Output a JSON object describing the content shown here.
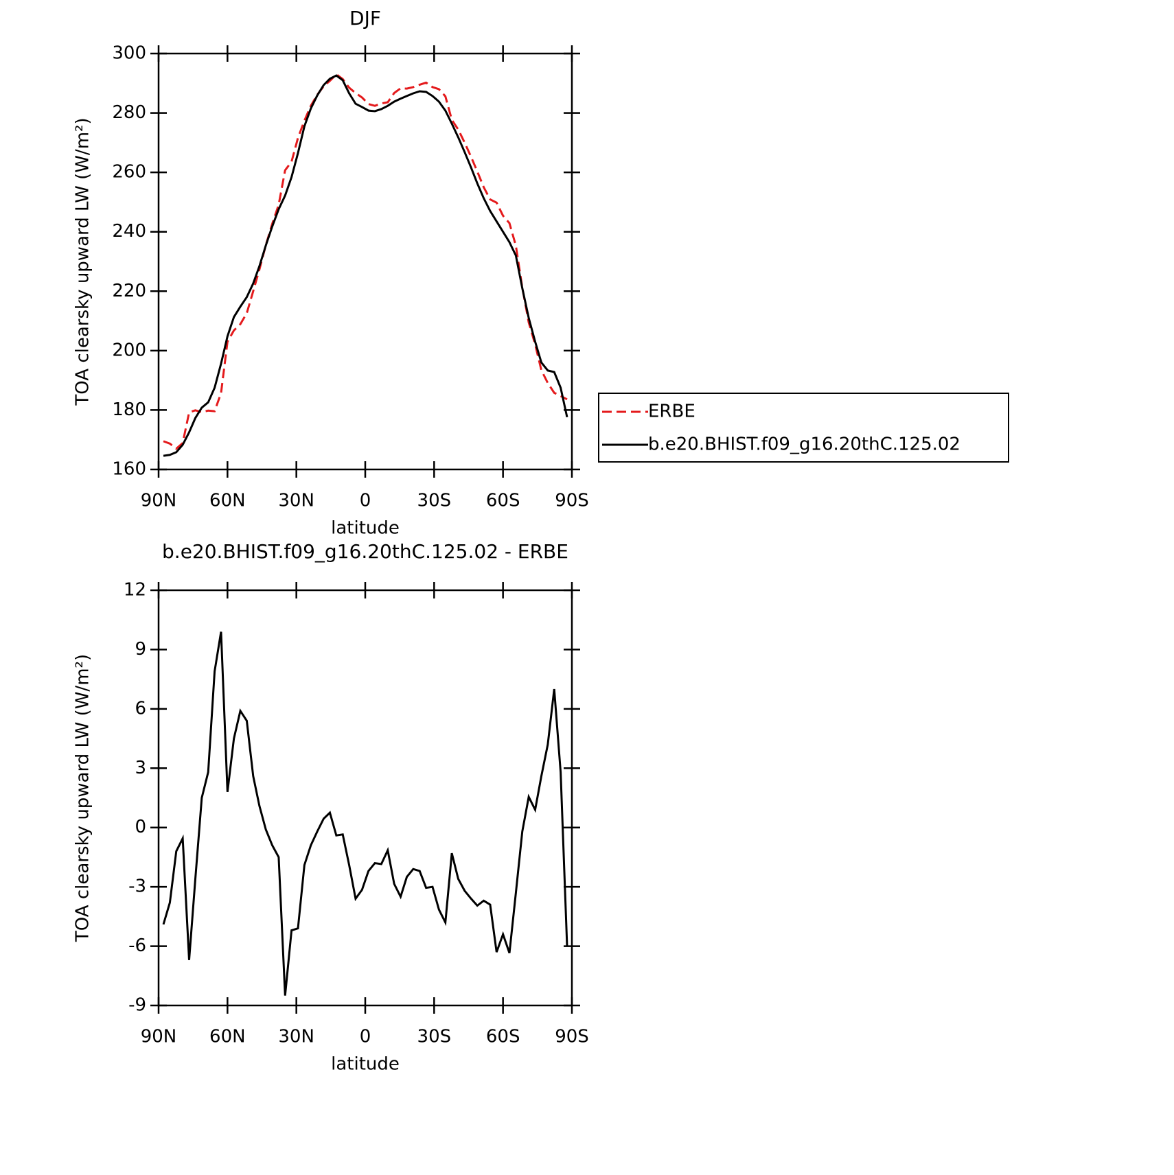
{
  "chart_data": [
    {
      "type": "line",
      "title": "DJF",
      "xlabel": "latitude",
      "ylabel": "TOA clearsky upward LW (W/m²)",
      "xlim": [
        90,
        -90
      ],
      "xticks": [
        {
          "value": 90,
          "label": "90N"
        },
        {
          "value": 60,
          "label": "60N"
        },
        {
          "value": 30,
          "label": "30N"
        },
        0,
        {
          "value": -30,
          "label": "30S"
        },
        {
          "value": -60,
          "label": "60S"
        },
        {
          "value": -90,
          "label": "90S"
        }
      ],
      "ylim": [
        160,
        300
      ],
      "yticks": [
        160,
        180,
        200,
        220,
        240,
        260,
        280,
        300
      ],
      "legend": "right",
      "x": [
        87.9,
        85.1,
        82.3,
        79.5,
        76.7,
        74.0,
        71.2,
        68.4,
        65.6,
        62.8,
        60.0,
        57.2,
        54.4,
        51.6,
        48.8,
        46.1,
        43.3,
        40.5,
        37.7,
        34.9,
        32.1,
        29.3,
        26.5,
        23.7,
        20.9,
        18.1,
        15.4,
        12.6,
        9.8,
        7.0,
        4.2,
        1.4,
        -1.4,
        -4.2,
        -7.0,
        -9.8,
        -12.6,
        -15.4,
        -18.1,
        -20.9,
        -23.7,
        -26.5,
        -29.3,
        -32.1,
        -34.9,
        -37.7,
        -40.5,
        -43.3,
        -46.1,
        -48.8,
        -51.6,
        -54.4,
        -57.2,
        -60.0,
        -62.8,
        -65.6,
        -68.4,
        -71.2,
        -74.0,
        -76.7,
        -79.5,
        -82.3,
        -85.1,
        -87.9
      ],
      "series": [
        {
          "name": "ERBE",
          "color": "#e41a1c",
          "linestyle": "dashed",
          "values": [
            169.5,
            168.7,
            167.0,
            168.9,
            179.2,
            179.9,
            179.3,
            179.8,
            179.6,
            185.7,
            203.0,
            206.8,
            208.9,
            212.6,
            220.0,
            227.3,
            235.5,
            242.7,
            249.1,
            260.7,
            263.6,
            271.6,
            277.4,
            282.4,
            286.1,
            289.0,
            290.8,
            293.0,
            291.4,
            288.5,
            286.7,
            285.2,
            283.0,
            282.4,
            283.2,
            283.6,
            286.7,
            288.3,
            288.2,
            288.7,
            289.5,
            290.2,
            288.7,
            288.0,
            285.6,
            277.7,
            274.4,
            270.0,
            265.2,
            260.3,
            255.0,
            250.9,
            249.8,
            245.4,
            242.9,
            235.3,
            221.2,
            209.5,
            202.1,
            193.4,
            189.1,
            185.8,
            184.7,
            183.6
          ]
        },
        {
          "name": "b.e20.BHIST.f09_g16.20thC.125.02",
          "color": "#000000",
          "linestyle": "solid",
          "values": [
            164.6,
            164.9,
            165.8,
            168.3,
            172.5,
            177.3,
            180.8,
            182.6,
            187.5,
            195.6,
            204.8,
            211.3,
            214.8,
            218.0,
            222.6,
            228.4,
            235.4,
            241.8,
            247.6,
            252.2,
            258.4,
            266.5,
            275.5,
            281.5,
            285.9,
            289.4,
            291.5,
            292.6,
            291.0,
            286.6,
            283.1,
            282.0,
            280.8,
            280.6,
            281.3,
            282.4,
            283.8,
            284.8,
            285.7,
            286.6,
            287.3,
            287.1,
            285.7,
            283.8,
            280.8,
            276.4,
            271.8,
            266.8,
            261.6,
            256.3,
            251.3,
            247.0,
            243.5,
            240.0,
            236.5,
            232.0,
            221.0,
            211.0,
            203.0,
            196.0,
            193.3,
            192.8,
            187.5,
            177.6
          ]
        }
      ]
    },
    {
      "type": "line",
      "title": "b.e20.BHIST.f09_g16.20thC.125.02 - ERBE",
      "xlabel": "latitude",
      "ylabel": "TOA clearsky upward LW (W/m²)",
      "xlim": [
        90,
        -90
      ],
      "xticks": [
        {
          "value": 90,
          "label": "90N"
        },
        {
          "value": 60,
          "label": "60N"
        },
        {
          "value": 30,
          "label": "30N"
        },
        0,
        {
          "value": -30,
          "label": "30S"
        },
        {
          "value": -60,
          "label": "60S"
        },
        {
          "value": -90,
          "label": "90S"
        }
      ],
      "ylim": [
        -9,
        12
      ],
      "yticks": [
        -9,
        -6,
        -3,
        0,
        3,
        6,
        9,
        12
      ],
      "x": [
        87.9,
        85.1,
        82.3,
        79.5,
        76.7,
        74.0,
        71.2,
        68.4,
        65.6,
        62.8,
        60.0,
        57.2,
        54.4,
        51.6,
        48.8,
        46.1,
        43.3,
        40.5,
        37.7,
        34.9,
        32.1,
        29.3,
        26.5,
        23.7,
        20.9,
        18.1,
        15.4,
        12.6,
        9.8,
        7.0,
        4.2,
        1.4,
        -1.4,
        -4.2,
        -7.0,
        -9.8,
        -12.6,
        -15.4,
        -18.1,
        -20.9,
        -23.7,
        -26.5,
        -29.3,
        -32.1,
        -34.9,
        -37.7,
        -40.5,
        -43.3,
        -46.1,
        -48.8,
        -51.6,
        -54.4,
        -57.2,
        -60.0,
        -62.8,
        -65.6,
        -68.4,
        -71.2,
        -74.0,
        -76.7,
        -79.5,
        -82.3,
        -85.1,
        -87.9
      ],
      "color": "#000000",
      "values": [
        -4.9,
        -3.8,
        -1.2,
        -0.55,
        -6.7,
        -2.6,
        1.5,
        2.8,
        7.9,
        9.9,
        1.8,
        4.5,
        5.9,
        5.4,
        2.6,
        1.1,
        -0.1,
        -0.9,
        -1.5,
        -8.5,
        -5.2,
        -5.1,
        -1.9,
        -0.9,
        -0.2,
        0.45,
        0.75,
        -0.4,
        -0.35,
        -1.9,
        -3.6,
        -3.15,
        -2.2,
        -1.8,
        -1.85,
        -1.15,
        -2.85,
        -3.5,
        -2.5,
        -2.1,
        -2.2,
        -3.05,
        -3.0,
        -4.15,
        -4.8,
        -1.3,
        -2.6,
        -3.2,
        -3.6,
        -3.95,
        -3.7,
        -3.9,
        -6.3,
        -5.4,
        -6.35,
        -3.3,
        -0.2,
        1.55,
        0.9,
        2.6,
        4.2,
        7.0,
        2.8,
        -6.0
      ]
    }
  ]
}
